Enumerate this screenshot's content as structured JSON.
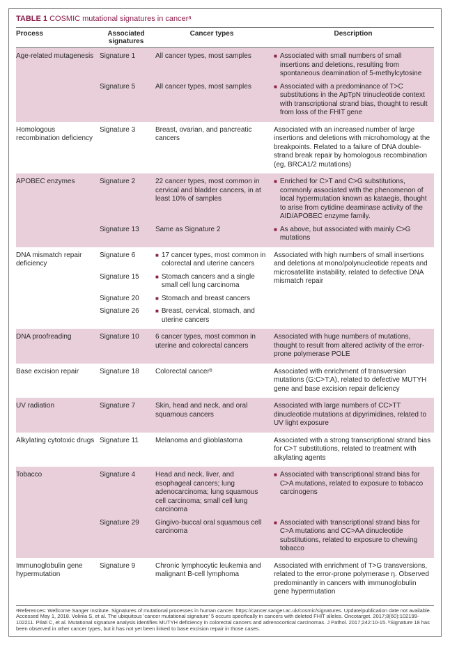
{
  "title_prefix": "TABLE 1",
  "title_rest": " COSMIC mutational signatures in cancerᵃ",
  "headers": {
    "process": "Process",
    "signatures": "Associated signatures",
    "cancer": "Cancer types",
    "description": "Description"
  },
  "rows": [
    {
      "shaded": true,
      "process": "Age-related mutagenesis",
      "sigs": [
        {
          "sig": "Signature 1",
          "cancer": "All cancer types, most samples",
          "cancer_bullet": false,
          "desc": "Associated with small numbers of small insertions and deletions, resulting from spontaneous deamination of 5-methylcytosine",
          "desc_bullet": true
        },
        {
          "sig": "Signature 5",
          "cancer": "All cancer types, most samples",
          "cancer_bullet": false,
          "desc": "Associated with a predominance of T>C substitutions in the ApTpN trinucleotide context with transcriptional strand bias, thought to result from loss of the FHIT gene",
          "desc_bullet": true
        }
      ]
    },
    {
      "shaded": false,
      "process": "Homologous recombination deficiency",
      "sigs": [
        {
          "sig": "Signature 3",
          "cancer": "Breast, ovarian, and pancreatic cancers",
          "cancer_bullet": false,
          "desc": "Associated with an increased number of large insertions and deletions with microhomology at the breakpoints. Related to a failure of DNA double-strand break repair by homologous recombination (eg, BRCA1/2 mutations)",
          "desc_bullet": false
        }
      ]
    },
    {
      "shaded": true,
      "process": "APOBEC enzymes",
      "sigs": [
        {
          "sig": "Signature 2",
          "cancer": "22 cancer types, most common in cervical and bladder cancers, in at least 10% of samples",
          "cancer_bullet": false,
          "desc": "Enriched for C>T and C>G substitutions, commonly associated with the phenomenon of local hypermutation known as kataegis, thought to arise from cytidine deaminase activity of the AID/APOBEC enzyme family.",
          "desc_bullet": true
        },
        {
          "sig": "Signature 13",
          "cancer": "Same as Signature 2",
          "cancer_bullet": false,
          "desc": "As above, but associated with mainly C>G mutations",
          "desc_bullet": true
        }
      ]
    },
    {
      "shaded": false,
      "process": "DNA mismatch repair deficiency",
      "desc_shared": "Associated with high numbers of small insertions and deletions at mono/polynucleotide repeats and microsatellite instability, related to defective DNA mismatch repair",
      "sigs": [
        {
          "sig": "Signature 6",
          "cancer": "17 cancer types, most common in colorectal and uterine cancers",
          "cancer_bullet": true
        },
        {
          "sig": "Signature 15",
          "cancer": "Stomach cancers and a single small cell lung carcinoma",
          "cancer_bullet": true
        },
        {
          "sig": "Signature 20",
          "cancer": "Stomach and breast cancers",
          "cancer_bullet": true
        },
        {
          "sig": "Signature 26",
          "cancer": "Breast, cervical, stomach, and uterine cancers",
          "cancer_bullet": true
        }
      ]
    },
    {
      "shaded": true,
      "process": "DNA proofreading",
      "sigs": [
        {
          "sig": "Signature 10",
          "cancer": "6 cancer types, most common in uterine and colorectal cancers",
          "cancer_bullet": false,
          "desc": "Associated with huge numbers of mutations, thought to result from altered activity of the error-prone polymerase POLE",
          "desc_bullet": false
        }
      ]
    },
    {
      "shaded": false,
      "process": "Base excision repair",
      "sigs": [
        {
          "sig": "Signature 18",
          "cancer": "Colorectal cancerᵇ",
          "cancer_bullet": false,
          "desc": "Associated with enrichment of transversion mutations (G:C>T:A), related to defective MUTYH gene and base excision repair deficiency",
          "desc_bullet": false
        }
      ]
    },
    {
      "shaded": true,
      "process": "UV radiation",
      "sigs": [
        {
          "sig": "Signature 7",
          "cancer": "Skin, head and neck, and oral squamous cancers",
          "cancer_bullet": false,
          "desc": "Associated with large numbers of CC>TT dinucleotide mutations at dipyrimidines, related to UV light exposure",
          "desc_bullet": false
        }
      ]
    },
    {
      "shaded": false,
      "process": "Alkylating cytotoxic drugs",
      "sigs": [
        {
          "sig": "Signature 11",
          "cancer": "Melanoma and glioblastoma",
          "cancer_bullet": false,
          "desc": "Associated with a strong transcriptional strand bias for C>T substitutions, related to treatment with alkylating agents",
          "desc_bullet": false
        }
      ]
    },
    {
      "shaded": true,
      "process": "Tobacco",
      "sigs": [
        {
          "sig": "Signature 4",
          "cancer": "Head and neck, liver, and esophageal cancers; lung adenocarcinoma; lung squamous cell carcinoma; small cell lung carcinoma",
          "cancer_bullet": false,
          "desc": "Associated with transcriptional strand bias for C>A mutations, related to exposure to tobacco carcinogens",
          "desc_bullet": true
        },
        {
          "sig": "Signature 29",
          "cancer": "Gingivo-buccal oral squamous cell carcinoma",
          "cancer_bullet": false,
          "desc": "Associated with transcriptional strand bias for C>A mutations and CC>AA dinucleotide substitutions, related to exposure to chewing tobacco",
          "desc_bullet": true
        }
      ]
    },
    {
      "shaded": false,
      "process": "Immunoglobulin gene hypermutation",
      "sigs": [
        {
          "sig": "Signature 9",
          "cancer": "Chronic lymphocytic leukemia and malignant B-cell lymphoma",
          "cancer_bullet": false,
          "desc": "Associated with enrichment of T>G transversions, related to the error-prone polymerase η. Observed predominantly in cancers with immunoglobulin gene hypermutation",
          "desc_bullet": false
        }
      ]
    }
  ],
  "footnote": "ᵃReferences: Wellcome Sanger Institute. Signatures of mutational processes in human cancer. https://cancer.sanger.ac.uk/cosmic/signatures. Update/publication date not available. Accessed May 1, 2018. Volinia S, et al. The ubiquitous 'cancer mutational signature' 5 occurs specifically in cancers with deleted FHIT alleles. Oncotarget. 2017;8(60):102199-102211. Pilati C, et al. Mutational signature analysis identifies MUTYH deficiency in colorectal cancers and adrenocortical carcinomas. J Pathol. 2017;242:10-15. ᵇSignature 18 has been observed in other cancer types, but it has not yet been linked to base excision repair in those cases."
}
